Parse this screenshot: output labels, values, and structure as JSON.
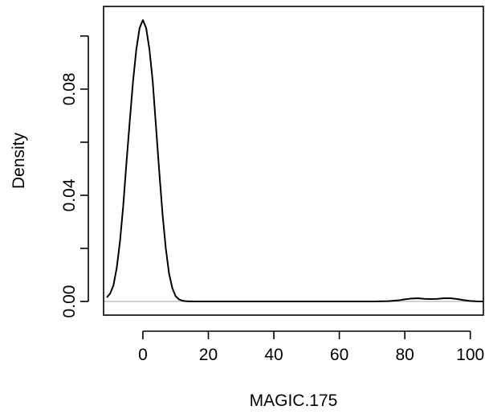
{
  "chart_data": {
    "type": "line",
    "title": "",
    "xlabel": "MAGIC.175",
    "ylabel": "Density",
    "xlim": [
      -12,
      104
    ],
    "ylim": [
      0,
      0.106
    ],
    "x_ticks": [
      0,
      20,
      40,
      60,
      80,
      100
    ],
    "x_tick_labels": [
      "0",
      "20",
      "40",
      "60",
      "80",
      "100"
    ],
    "y_ticks": [
      0,
      0.02,
      0.04,
      0.06,
      0.08,
      0.1
    ],
    "y_tick_labels": [
      "0.00",
      "",
      "0.04",
      "",
      "0.08",
      ""
    ],
    "grid": false,
    "reference_line_y": 0,
    "series": [
      {
        "x": [
          -11,
          -10,
          -9,
          -8,
          -7,
          -6,
          -5,
          -4,
          -3,
          -2,
          -1,
          0,
          1,
          2,
          3,
          4,
          5,
          6,
          7,
          8,
          9,
          10,
          11,
          12,
          13,
          14,
          16,
          20,
          30,
          40,
          50,
          60,
          70,
          75,
          78,
          80,
          82,
          84,
          86,
          88,
          90,
          92,
          94,
          96,
          98,
          100,
          102,
          104
        ],
        "y": [
          0.0015,
          0.003,
          0.006,
          0.0125,
          0.0225,
          0.036,
          0.0525,
          0.068,
          0.083,
          0.095,
          0.103,
          0.106,
          0.103,
          0.095,
          0.083,
          0.066,
          0.049,
          0.033,
          0.02,
          0.0105,
          0.005,
          0.002,
          0.0008,
          0.0003,
          0.0001,
          5e-05,
          0.0,
          0.0,
          0.0,
          0.0,
          0.0,
          0.0,
          0.0,
          0.0001,
          0.0004,
          0.0008,
          0.0011,
          0.0012,
          0.001,
          0.0009,
          0.001,
          0.0012,
          0.0012,
          0.0009,
          0.0005,
          0.0002,
          5e-05,
          0.0
        ]
      }
    ]
  }
}
